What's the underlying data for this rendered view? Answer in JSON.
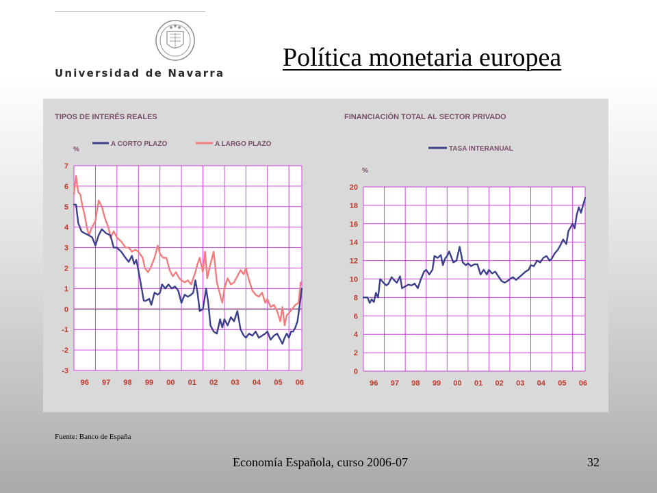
{
  "slide": {
    "title": "Política monetaria europea",
    "logo_text": "Universidad de Navarra",
    "source": "Fuente: Banco de España",
    "footer": "Economía Española, curso 2006-07",
    "page_number": "32"
  },
  "colors": {
    "short_rate": "#3b3f8c",
    "long_rate": "#f47c7c",
    "credit": "#3b3f8c",
    "grid": "#cc44dd",
    "axis_text": "#c0392b",
    "header_text": "#7a4e6d"
  },
  "chart_data": [
    {
      "type": "line",
      "title": "TIPOS DE INTERÉS REALES",
      "ylabel": "%",
      "ylim": [
        -3,
        7
      ],
      "yticks": [
        7,
        6,
        5,
        4,
        3,
        2,
        1,
        0,
        -1,
        -2,
        -3
      ],
      "xlim": [
        1996,
        2006.6
      ],
      "xticks": [
        "96",
        "97",
        "98",
        "99",
        "00",
        "01",
        "02",
        "03",
        "04",
        "05",
        "06"
      ],
      "grid": true,
      "legend": "top",
      "series": [
        {
          "name": "A CORTO PLAZO",
          "x": [
            1996.0,
            1996.1,
            1996.2,
            1996.35,
            1996.5,
            1996.7,
            1996.85,
            1997.0,
            1997.15,
            1997.3,
            1997.5,
            1997.7,
            1997.85,
            1998.0,
            1998.2,
            1998.4,
            1998.55,
            1998.7,
            1998.8,
            1998.9,
            1999.0,
            1999.1,
            1999.25,
            1999.35,
            1999.5,
            1999.6,
            1999.75,
            1999.9,
            2000.0,
            2000.1,
            2000.25,
            2000.4,
            2000.55,
            2000.7,
            2000.85,
            2001.0,
            2001.15,
            2001.3,
            2001.45,
            2001.55,
            2001.65,
            2001.75,
            2001.85,
            2002.0,
            2002.15,
            2002.25,
            2002.35,
            2002.5,
            2002.65,
            2002.8,
            2002.9,
            2003.0,
            2003.15,
            2003.3,
            2003.45,
            2003.6,
            2003.75,
            2003.9,
            2004.0,
            2004.15,
            2004.3,
            2004.45,
            2004.6,
            2004.75,
            2004.9,
            2005.0,
            2005.15,
            2005.3,
            2005.45,
            2005.6,
            2005.7,
            2005.8,
            2005.9,
            2006.0,
            2006.1,
            2006.2,
            2006.3,
            2006.4,
            2006.5,
            2006.6
          ],
          "y": [
            5.1,
            5.1,
            4.2,
            3.8,
            3.7,
            3.6,
            3.5,
            3.1,
            3.6,
            3.9,
            3.7,
            3.6,
            3.0,
            3.0,
            2.8,
            2.5,
            2.3,
            2.6,
            2.2,
            2.4,
            1.9,
            1.3,
            0.4,
            0.4,
            0.5,
            0.2,
            0.8,
            0.7,
            0.8,
            1.2,
            1.0,
            1.2,
            1.0,
            1.1,
            0.9,
            0.3,
            0.7,
            0.6,
            0.7,
            0.8,
            1.4,
            0.8,
            -0.1,
            0.0,
            1.0,
            0.3,
            -0.8,
            -1.1,
            -1.2,
            -0.5,
            -0.9,
            -0.5,
            -0.8,
            -0.4,
            -0.6,
            -0.1,
            -1.0,
            -1.3,
            -1.4,
            -1.2,
            -1.3,
            -1.1,
            -1.4,
            -1.3,
            -1.2,
            -1.1,
            -1.5,
            -1.3,
            -1.2,
            -1.5,
            -1.7,
            -1.4,
            -1.2,
            -1.4,
            -1.1,
            -1.1,
            -0.9,
            -0.6,
            0.2,
            1.0
          ]
        },
        {
          "name": "A LARGO PLAZO",
          "x": [
            1996.0,
            1996.1,
            1996.2,
            1996.3,
            1996.4,
            1996.5,
            1996.6,
            1996.7,
            1996.8,
            1997.0,
            1997.15,
            1997.3,
            1997.45,
            1997.6,
            1997.7,
            1997.85,
            1998.0,
            1998.2,
            1998.4,
            1998.55,
            1998.7,
            1998.85,
            1999.0,
            1999.2,
            1999.3,
            1999.45,
            1999.6,
            1999.75,
            1999.9,
            2000.0,
            2000.15,
            2000.3,
            2000.45,
            2000.6,
            2000.75,
            2000.9,
            2001.0,
            2001.15,
            2001.3,
            2001.45,
            2001.55,
            2001.65,
            2001.75,
            2001.85,
            2002.0,
            2002.1,
            2002.2,
            2002.35,
            2002.5,
            2002.65,
            2002.8,
            2002.9,
            2003.0,
            2003.15,
            2003.3,
            2003.45,
            2003.6,
            2003.75,
            2003.9,
            2004.0,
            2004.15,
            2004.3,
            2004.45,
            2004.6,
            2004.75,
            2004.9,
            2005.0,
            2005.15,
            2005.3,
            2005.45,
            2005.6,
            2005.7,
            2005.8,
            2005.9,
            2006.0,
            2006.15,
            2006.3,
            2006.45,
            2006.55
          ],
          "y": [
            5.6,
            6.5,
            5.7,
            5.6,
            5.0,
            4.6,
            4.0,
            3.6,
            3.9,
            4.3,
            5.3,
            5.0,
            4.4,
            4.0,
            3.5,
            3.8,
            3.5,
            3.3,
            3.0,
            3.0,
            2.8,
            2.9,
            2.8,
            2.5,
            2.0,
            1.8,
            2.1,
            2.5,
            3.1,
            2.7,
            2.5,
            2.5,
            1.9,
            1.6,
            1.8,
            1.5,
            1.4,
            1.3,
            1.4,
            1.2,
            1.5,
            1.8,
            2.2,
            2.5,
            1.8,
            2.8,
            1.5,
            2.2,
            2.8,
            1.3,
            0.7,
            0.3,
            1.0,
            1.5,
            1.2,
            1.3,
            1.6,
            1.9,
            1.7,
            2.0,
            1.4,
            0.9,
            0.7,
            0.6,
            0.8,
            0.3,
            0.5,
            0.1,
            0.2,
            -0.1,
            -0.6,
            0.1,
            -0.8,
            -0.3,
            -0.2,
            0.0,
            0.2,
            0.3,
            1.3
          ]
        }
      ]
    },
    {
      "type": "line",
      "title": "FINANCIACIÓN TOTAL AL SECTOR PRIVADO",
      "ylabel": "%",
      "ylim": [
        0,
        20
      ],
      "yticks": [
        20,
        18,
        16,
        14,
        12,
        10,
        8,
        6,
        4,
        2,
        0
      ],
      "xlim": [
        1996,
        2006.6
      ],
      "xticks": [
        "96",
        "97",
        "98",
        "99",
        "00",
        "01",
        "02",
        "03",
        "04",
        "05",
        "06"
      ],
      "grid": true,
      "legend": "top",
      "series": [
        {
          "name": "TASA INTERANUAL",
          "x": [
            1996.0,
            1996.2,
            1996.3,
            1996.4,
            1996.5,
            1996.6,
            1996.7,
            1996.8,
            1997.0,
            1997.1,
            1997.2,
            1997.35,
            1997.5,
            1997.6,
            1997.75,
            1997.85,
            1998.0,
            1998.15,
            1998.3,
            1998.45,
            1998.6,
            1998.75,
            1998.9,
            1999.0,
            1999.15,
            1999.3,
            1999.4,
            1999.55,
            1999.7,
            1999.8,
            1999.9,
            2000.0,
            2000.1,
            2000.2,
            2000.3,
            2000.45,
            2000.6,
            2000.75,
            2000.9,
            2001.0,
            2001.15,
            2001.3,
            2001.45,
            2001.6,
            2001.75,
            2001.9,
            2002.0,
            2002.15,
            2002.3,
            2002.45,
            2002.6,
            2002.75,
            2002.9,
            2003.0,
            2003.15,
            2003.3,
            2003.45,
            2003.6,
            2003.75,
            2003.9,
            2004.0,
            2004.15,
            2004.3,
            2004.45,
            2004.6,
            2004.75,
            2004.9,
            2005.0,
            2005.15,
            2005.3,
            2005.4,
            2005.55,
            2005.7,
            2005.8,
            2005.9,
            2006.0,
            2006.1,
            2006.2,
            2006.3,
            2006.4,
            2006.5,
            2006.6
          ],
          "y": [
            8.0,
            8.0,
            7.4,
            7.8,
            7.5,
            8.5,
            8.0,
            10.0,
            9.5,
            9.3,
            9.5,
            10.2,
            9.8,
            9.6,
            10.3,
            9.0,
            9.2,
            9.4,
            9.3,
            9.5,
            9.0,
            10.0,
            10.8,
            11.0,
            10.5,
            11.0,
            12.5,
            12.3,
            12.6,
            11.5,
            12.2,
            12.5,
            13.0,
            12.4,
            11.8,
            12.0,
            13.5,
            11.8,
            11.5,
            11.7,
            11.4,
            11.6,
            11.6,
            10.5,
            11.0,
            10.5,
            11.0,
            10.6,
            10.8,
            10.3,
            9.8,
            9.6,
            9.8,
            10.0,
            10.2,
            9.9,
            10.2,
            10.5,
            10.8,
            11.0,
            11.5,
            11.4,
            12.0,
            11.8,
            12.3,
            12.5,
            12.0,
            12.2,
            12.8,
            13.2,
            13.6,
            14.3,
            13.8,
            15.2,
            15.6,
            16.0,
            15.5,
            17.0,
            17.8,
            17.2,
            18.0,
            18.8
          ]
        }
      ]
    }
  ]
}
